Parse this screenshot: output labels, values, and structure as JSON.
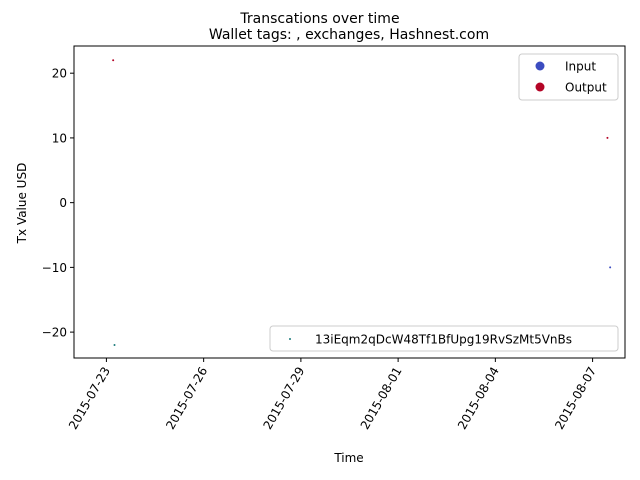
{
  "chart_data": {
    "type": "scatter",
    "suptitle": "Transcations over time",
    "title": "Wallet tags: , exchanges, Hashnest.com",
    "xlabel": "Time",
    "ylabel": "Tx Value USD",
    "xlim": [
      "2015-07-22",
      "2015-08-08"
    ],
    "ylim": [
      -24,
      24.2
    ],
    "x_ticks": [
      "2015-07-23",
      "2015-07-26",
      "2015-07-29",
      "2015-08-01",
      "2015-08-04",
      "2015-08-07"
    ],
    "y_ticks": [
      20,
      10,
      0,
      -10,
      -20
    ],
    "grid": false,
    "series": [
      {
        "name": "Input",
        "color": "#3b4cc0",
        "points": [
          {
            "x": "2015-08-07T13:00",
            "y": -10
          }
        ]
      },
      {
        "name": "Output",
        "color": "#b40426",
        "points": [
          {
            "x": "2015-07-23T05:00",
            "y": 22
          },
          {
            "x": "2015-08-07T11:00",
            "y": 10
          }
        ]
      },
      {
        "name": "13iEqm2qDcW48Tf1BfUpg19RvSzMt5VnBs",
        "color": "#1a7a7a",
        "points": [
          {
            "x": "2015-07-23T06:00",
            "y": -22
          }
        ]
      }
    ],
    "legends": [
      {
        "position": "upper right",
        "entries": [
          "Input",
          "Output"
        ]
      },
      {
        "position": "lower right",
        "entries": [
          "13iEqm2qDcW48Tf1BfUpg19RvSzMt5VnBs"
        ]
      }
    ]
  }
}
